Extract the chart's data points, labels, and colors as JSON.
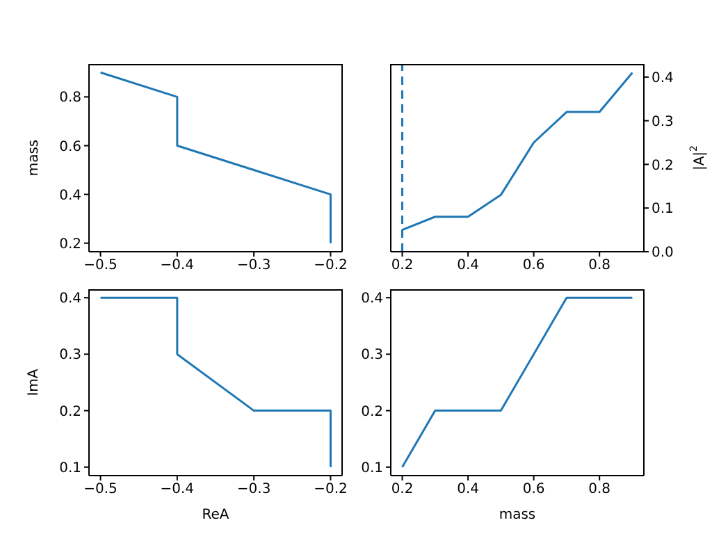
{
  "chart_data": [
    {
      "type": "line",
      "ylabel": "mass",
      "xlim": [
        -0.515,
        -0.185
      ],
      "xticks": [
        {
          "value": -0.5,
          "label": "−0.5"
        },
        {
          "value": -0.4,
          "label": "−0.4"
        },
        {
          "value": -0.3,
          "label": "−0.3"
        },
        {
          "value": -0.2,
          "label": "−0.2"
        }
      ],
      "ylim": [
        0.165,
        0.935
      ],
      "yticks": [
        0.2,
        0.4,
        0.6,
        0.8
      ],
      "series": [
        {
          "color": "#1f77b4",
          "x": [
            -0.5,
            -0.4,
            -0.4,
            -0.4,
            -0.3,
            -0.2,
            -0.2,
            -0.2
          ],
          "values": [
            0.9,
            0.8,
            0.7,
            0.6,
            0.5,
            0.4,
            0.3,
            0.2
          ]
        }
      ]
    },
    {
      "type": "line",
      "y2label": "|A|$^{2}$",
      "xlim": [
        0.165,
        0.935
      ],
      "xticks": [
        0.2,
        0.4,
        0.6,
        0.8
      ],
      "y2lim": [
        0,
        0.43
      ],
      "y2ticks": [
        {
          "value": 0,
          "label": "0.0"
        },
        0.1,
        0.2,
        0.3,
        0.4
      ],
      "ref_lines": [
        {
          "axis": "x",
          "value": 0.2,
          "color": "#1f77b4",
          "line_style": "dashed"
        }
      ],
      "series": [
        {
          "color": "#1f77b4",
          "axis": "y2",
          "x": [
            0.2,
            0.3,
            0.4,
            0.5,
            0.6,
            0.7,
            0.8,
            0.9
          ],
          "values": [
            0.05,
            0.08,
            0.08,
            0.13,
            0.25,
            0.32,
            0.32,
            0.41
          ]
        }
      ]
    },
    {
      "type": "line",
      "xlabel": "ReA",
      "ylabel": "ImA",
      "xlim": [
        -0.515,
        -0.185
      ],
      "xticks": [
        {
          "value": -0.5,
          "label": "−0.5"
        },
        {
          "value": -0.4,
          "label": "−0.4"
        },
        {
          "value": -0.3,
          "label": "−0.3"
        },
        {
          "value": -0.2,
          "label": "−0.2"
        }
      ],
      "ylim": [
        0.085,
        0.415
      ],
      "yticks": [
        0.1,
        0.2,
        0.3,
        0.4
      ],
      "series": [
        {
          "color": "#1f77b4",
          "x": [
            -0.5,
            -0.4,
            -0.4,
            -0.4,
            -0.3,
            -0.2,
            -0.2,
            -0.2
          ],
          "values": [
            0.4,
            0.4,
            0.4,
            0.3,
            0.2,
            0.2,
            0.2,
            0.1
          ]
        }
      ]
    },
    {
      "type": "line",
      "xlabel": "mass",
      "xlim": [
        0.165,
        0.935
      ],
      "xticks": [
        0.2,
        0.4,
        0.6,
        0.8
      ],
      "ylim": [
        0.085,
        0.415
      ],
      "yticks": [
        0.1,
        0.2,
        0.3,
        0.4
      ],
      "series": [
        {
          "color": "#1f77b4",
          "x": [
            0.2,
            0.3,
            0.4,
            0.5,
            0.6,
            0.7,
            0.8,
            0.9
          ],
          "values": [
            0.1,
            0.2,
            0.2,
            0.2,
            0.3,
            0.4,
            0.4,
            0.4
          ]
        }
      ]
    }
  ]
}
